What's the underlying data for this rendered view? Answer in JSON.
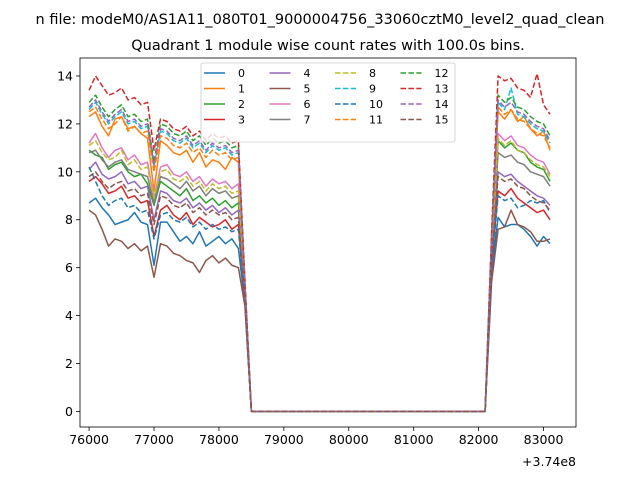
{
  "chart_data": {
    "type": "line",
    "suptitle": "n file: modeM0/AS1A11_080T01_9000004756_33060cztM0_level2_quad_clean",
    "title": "Quadrant 1 module wise count rates with 100.0s bins.",
    "xlabel": "",
    "ylabel": "",
    "x_offset_label": "+3.74e8",
    "xlim": [
      75860,
      83500
    ],
    "ylim": [
      -0.65,
      14.75
    ],
    "x_ticks": [
      76000,
      77000,
      78000,
      79000,
      80000,
      81000,
      82000,
      83000
    ],
    "x_tick_labels": [
      "76000",
      "77000",
      "78000",
      "79000",
      "80000",
      "81000",
      "82000",
      "83000"
    ],
    "y_ticks": [
      0,
      2,
      4,
      6,
      8,
      10,
      12,
      14
    ],
    "y_tick_labels": [
      "0",
      "2",
      "4",
      "6",
      "8",
      "10",
      "12",
      "14"
    ],
    "grid": false,
    "legend_position": "upper-center",
    "legend_columns": 4,
    "colors": [
      "#1f77b4",
      "#ff7f0e",
      "#2ca02c",
      "#d62728",
      "#9467bd",
      "#8c564b",
      "#e377c2",
      "#7f7f7f",
      "#bcbd22",
      "#17becf"
    ],
    "line_styles": [
      "solid",
      "solid",
      "solid",
      "solid",
      "solid",
      "solid",
      "solid",
      "solid",
      "dashed",
      "dashed",
      "dashed",
      "dashed",
      "dashed",
      "dashed",
      "dashed",
      "dashed"
    ],
    "x": [
      76000,
      76100,
      76200,
      76300,
      76400,
      76500,
      76600,
      76700,
      76800,
      76900,
      77000,
      77100,
      77200,
      77300,
      77400,
      77500,
      77600,
      77700,
      77800,
      77900,
      78000,
      78100,
      78200,
      78300,
      78400,
      78500,
      82100,
      82200,
      82300,
      82400,
      82500,
      82600,
      82700,
      82800,
      82900,
      83000,
      83100
    ],
    "series": [
      {
        "name": "0",
        "values": [
          8.7,
          8.9,
          8.5,
          8.2,
          7.8,
          7.9,
          8.0,
          8.3,
          7.9,
          7.8,
          6.1,
          7.9,
          7.9,
          7.5,
          7.1,
          7.3,
          7.0,
          7.5,
          6.9,
          7.1,
          7.3,
          7.0,
          7.2,
          6.8,
          4.5,
          0.0,
          0.0,
          5.8,
          8.1,
          7.7,
          7.8,
          7.8,
          7.6,
          7.3,
          6.9,
          7.3,
          7.0
        ]
      },
      {
        "name": "1",
        "values": [
          12.3,
          12.5,
          11.9,
          11.5,
          12.2,
          12.3,
          11.8,
          11.9,
          11.6,
          11.4,
          9.2,
          11.3,
          11.1,
          10.8,
          10.7,
          10.9,
          10.4,
          10.8,
          10.2,
          10.5,
          10.4,
          10.1,
          10.6,
          10.4,
          5.2,
          0.0,
          0.0,
          7.0,
          12.5,
          12.2,
          12.6,
          12.1,
          12.3,
          11.8,
          11.5,
          11.7,
          10.9
        ]
      },
      {
        "name": "2",
        "values": [
          10.9,
          10.7,
          10.6,
          10.1,
          10.3,
          10.4,
          10.0,
          9.8,
          9.9,
          9.5,
          8.6,
          9.6,
          9.4,
          9.2,
          9.0,
          9.3,
          8.8,
          9.0,
          8.7,
          8.9,
          8.6,
          8.8,
          8.5,
          8.7,
          4.8,
          0.0,
          0.0,
          6.6,
          11.3,
          11.0,
          11.2,
          10.9,
          10.8,
          10.4,
          10.2,
          10.1,
          9.6
        ]
      },
      {
        "name": "3",
        "values": [
          9.6,
          9.8,
          9.5,
          9.1,
          9.2,
          9.4,
          8.9,
          9.0,
          8.7,
          8.8,
          7.3,
          8.4,
          8.6,
          8.2,
          8.0,
          8.3,
          7.8,
          8.1,
          7.9,
          7.7,
          7.8,
          8.0,
          7.6,
          7.8,
          4.6,
          0.0,
          0.0,
          6.1,
          9.2,
          9.0,
          9.3,
          8.9,
          8.7,
          8.5,
          8.3,
          8.4,
          8.0
        ]
      },
      {
        "name": "4",
        "values": [
          10.1,
          10.4,
          9.9,
          9.7,
          9.8,
          10.0,
          9.5,
          9.6,
          9.3,
          9.4,
          8.0,
          9.2,
          9.1,
          8.8,
          8.7,
          8.9,
          8.5,
          8.7,
          8.4,
          8.6,
          8.3,
          8.5,
          8.2,
          8.4,
          4.7,
          0.0,
          0.0,
          6.4,
          10.0,
          9.8,
          9.9,
          9.6,
          9.4,
          9.2,
          9.0,
          8.9,
          8.6
        ]
      },
      {
        "name": "5",
        "values": [
          8.4,
          8.2,
          7.6,
          6.9,
          7.2,
          7.1,
          6.8,
          7.0,
          6.7,
          6.9,
          5.6,
          7.0,
          6.9,
          6.6,
          6.5,
          6.3,
          6.2,
          5.8,
          6.3,
          6.5,
          6.2,
          6.4,
          6.1,
          6.0,
          4.4,
          0.0,
          0.0,
          5.4,
          7.6,
          7.7,
          8.4,
          7.8,
          7.7,
          7.5,
          7.1,
          7.1,
          7.2
        ]
      },
      {
        "name": "6",
        "values": [
          11.2,
          11.6,
          11.0,
          10.6,
          10.9,
          11.0,
          10.5,
          10.7,
          10.3,
          10.4,
          8.9,
          10.2,
          10.3,
          9.9,
          9.8,
          10.0,
          9.6,
          9.8,
          9.4,
          9.7,
          9.5,
          9.6,
          9.3,
          9.5,
          5.0,
          0.0,
          0.0,
          6.8,
          11.6,
          11.3,
          11.5,
          11.1,
          11.0,
          10.7,
          10.5,
          10.4,
          9.9
        ]
      },
      {
        "name": "7",
        "values": [
          10.8,
          10.9,
          10.5,
          10.2,
          10.4,
          10.5,
          10.1,
          10.0,
          9.9,
          9.8,
          8.7,
          9.8,
          9.7,
          9.5,
          9.3,
          9.6,
          9.2,
          9.4,
          9.0,
          9.3,
          9.1,
          9.2,
          8.9,
          9.0,
          4.9,
          0.0,
          0.0,
          6.6,
          10.8,
          10.6,
          10.7,
          10.4,
          10.3,
          10.0,
          9.9,
          9.8,
          9.4
        ]
      },
      {
        "name": "8",
        "values": [
          11.1,
          11.3,
          10.8,
          10.5,
          10.6,
          10.9,
          10.3,
          10.5,
          10.1,
          10.2,
          8.9,
          10.0,
          10.1,
          9.7,
          9.6,
          9.8,
          9.4,
          9.6,
          9.2,
          9.5,
          9.3,
          9.4,
          9.1,
          9.2,
          5.0,
          0.0,
          0.0,
          6.7,
          11.4,
          11.1,
          11.3,
          10.9,
          10.8,
          10.5,
          10.3,
          10.2,
          9.8
        ]
      },
      {
        "name": "9",
        "values": [
          12.6,
          12.9,
          12.4,
          12.0,
          12.3,
          12.5,
          12.0,
          12.1,
          11.8,
          11.9,
          10.2,
          11.7,
          11.6,
          11.3,
          11.2,
          11.4,
          11.0,
          11.2,
          10.8,
          11.1,
          10.9,
          11.0,
          10.7,
          10.8,
          5.3,
          0.0,
          0.0,
          7.2,
          12.9,
          12.6,
          13.5,
          12.4,
          12.3,
          12.0,
          11.8,
          11.7,
          11.2
        ]
      },
      {
        "name": "10",
        "values": [
          10.2,
          9.6,
          9.0,
          8.6,
          8.8,
          8.9,
          8.5,
          8.6,
          8.3,
          8.4,
          7.2,
          8.2,
          8.3,
          8.0,
          7.9,
          8.1,
          7.7,
          7.9,
          7.6,
          7.8,
          7.6,
          7.7,
          7.5,
          7.6,
          4.6,
          0.0,
          0.0,
          6.0,
          9.0,
          8.8,
          8.9,
          8.5,
          8.6,
          8.8,
          8.7,
          8.8,
          8.3
        ]
      },
      {
        "name": "11",
        "values": [
          12.5,
          12.7,
          12.2,
          11.8,
          12.0,
          12.3,
          11.7,
          11.9,
          11.6,
          11.7,
          10.0,
          11.5,
          11.4,
          11.1,
          11.0,
          11.2,
          10.8,
          11.0,
          10.6,
          10.9,
          10.7,
          10.8,
          10.5,
          10.6,
          5.2,
          0.0,
          0.0,
          7.1,
          12.7,
          12.4,
          12.6,
          12.2,
          12.1,
          11.8,
          11.6,
          11.5,
          11.0
        ]
      },
      {
        "name": "12",
        "values": [
          12.9,
          13.2,
          12.7,
          12.3,
          12.6,
          12.8,
          12.3,
          12.4,
          12.1,
          12.2,
          10.4,
          12.0,
          11.9,
          11.6,
          11.5,
          11.7,
          11.3,
          11.5,
          11.1,
          11.4,
          11.2,
          11.3,
          11.0,
          11.1,
          5.4,
          0.0,
          0.0,
          7.3,
          13.2,
          12.9,
          13.1,
          12.7,
          12.6,
          12.3,
          12.1,
          12.0,
          11.5
        ]
      },
      {
        "name": "13",
        "values": [
          13.4,
          14.0,
          13.6,
          13.2,
          13.3,
          13.5,
          13.0,
          13.1,
          12.8,
          12.9,
          10.9,
          12.2,
          12.1,
          11.8,
          11.7,
          11.9,
          11.5,
          11.7,
          11.3,
          11.6,
          11.4,
          11.5,
          11.2,
          11.3,
          5.5,
          0.0,
          0.0,
          7.5,
          14.0,
          13.8,
          13.9,
          13.5,
          13.4,
          13.1,
          14.1,
          12.8,
          12.4
        ]
      },
      {
        "name": "14",
        "values": [
          12.7,
          13.0,
          12.5,
          12.1,
          12.4,
          12.6,
          12.1,
          12.2,
          11.9,
          12.0,
          10.3,
          11.8,
          11.7,
          11.4,
          11.3,
          11.5,
          11.1,
          11.3,
          10.9,
          11.2,
          11.0,
          11.1,
          10.8,
          10.9,
          5.3,
          0.0,
          0.0,
          7.2,
          13.0,
          12.7,
          12.9,
          12.5,
          12.4,
          12.1,
          11.9,
          11.8,
          11.3
        ]
      },
      {
        "name": "15",
        "values": [
          9.8,
          10.0,
          9.6,
          9.3,
          9.5,
          9.6,
          9.2,
          9.3,
          9.0,
          9.1,
          7.8,
          9.0,
          8.9,
          8.6,
          8.5,
          8.7,
          8.3,
          8.5,
          8.2,
          8.4,
          8.2,
          8.3,
          8.0,
          8.1,
          4.7,
          0.0,
          0.0,
          6.3,
          9.8,
          9.6,
          9.7,
          9.4,
          9.3,
          9.0,
          8.8,
          8.7,
          8.4
        ]
      }
    ]
  }
}
